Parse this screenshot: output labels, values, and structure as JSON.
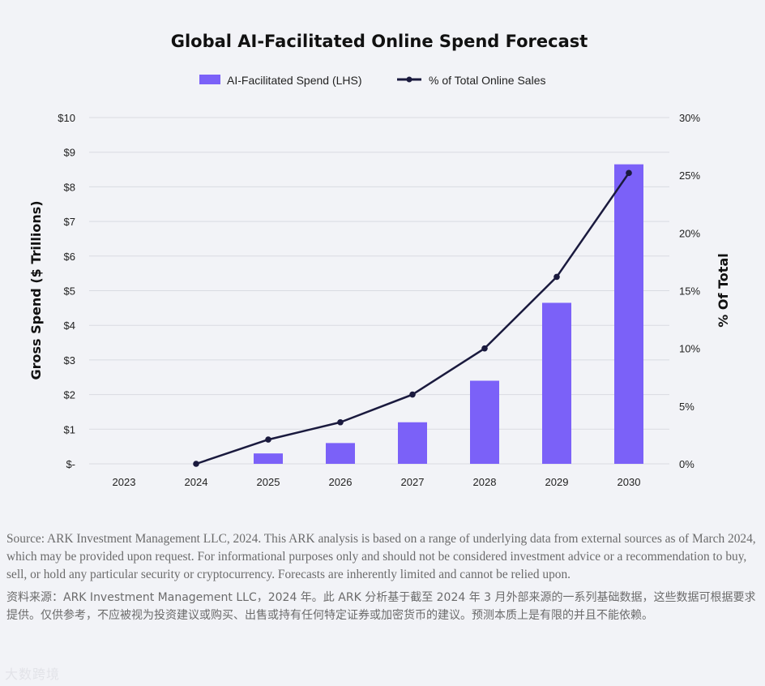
{
  "chart_data": {
    "type": "bar",
    "title": "Global AI-Facilitated Online Spend Forecast",
    "categories": [
      "2023",
      "2024",
      "2025",
      "2026",
      "2027",
      "2028",
      "2029",
      "2030"
    ],
    "series": [
      {
        "name": "AI-Facilitated Spend (LHS)",
        "type": "bar",
        "axis": "left",
        "color": "#7b61f8",
        "values": [
          0,
          0,
          0.3,
          0.6,
          1.2,
          2.4,
          4.65,
          8.65
        ]
      },
      {
        "name": "% of Total Online Sales",
        "type": "line",
        "axis": "right",
        "color": "#1a1a3e",
        "values": [
          null,
          0,
          2.1,
          3.6,
          6.0,
          10.0,
          16.2,
          25.2
        ]
      }
    ],
    "ylabel": "Gross Spend ($ Trillions)",
    "ylabel_right": "% Of Total",
    "ylim": [
      0,
      10
    ],
    "ylim_right": [
      0,
      30
    ],
    "yticks": [
      "$-",
      "$1",
      "$2",
      "$3",
      "$4",
      "$5",
      "$6",
      "$7",
      "$8",
      "$9",
      "$10"
    ],
    "yticks_right": [
      "0%",
      "5%",
      "10%",
      "15%",
      "20%",
      "25%",
      "30%"
    ],
    "legend": "top-center",
    "grid": true
  },
  "notes": {
    "en": "Source: ARK Investment Management LLC, 2024. This ARK analysis is based on a range of underlying data from external sources as of March 2024, which may be provided upon request. For informational purposes only and should not be considered investment advice or a recommendation to buy, sell, or hold any particular security or cryptocurrency. Forecasts are inherently limited and cannot be relied upon.",
    "cn": "资料来源：ARK Investment Management LLC，2024 年。此 ARK 分析基于截至 2024 年 3 月外部来源的一系列基础数据，这些数据可根据要求提供。仅供参考，不应被视为投资建议或购买、出售或持有任何特定证券或加密货币的建议。预测本质上是有限的并且不能依赖。"
  },
  "watermark": "大数跨境"
}
